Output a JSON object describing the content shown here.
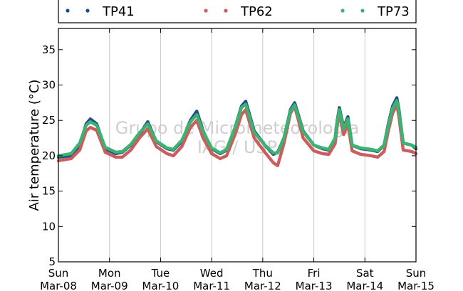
{
  "chart_data": {
    "type": "scatter",
    "ylabel": "Air temperature (°C)",
    "ylim": [
      5,
      38
    ],
    "yticks": [
      5,
      10,
      15,
      20,
      25,
      30,
      35
    ],
    "xlim": [
      "2015-03-08",
      "2015-03-15"
    ],
    "xticks": [
      {
        "day": "Sun",
        "date": "Mar-08"
      },
      {
        "day": "Mon",
        "date": "Mar-09"
      },
      {
        "day": "Tue",
        "date": "Mar-10"
      },
      {
        "day": "Wed",
        "date": "Mar-11"
      },
      {
        "day": "Thu",
        "date": "Mar-12"
      },
      {
        "day": "Fri",
        "date": "Mar-13"
      },
      {
        "day": "Sat",
        "date": "Mar-14"
      },
      {
        "day": "Sun",
        "date": "Mar-15"
      }
    ],
    "grid": "vertical",
    "legend": "top",
    "watermark": [
      "Grupo de Micrometeorologia",
      "IAG / USP"
    ],
    "series": [
      {
        "name": "TP41",
        "color": "#1f4e8c",
        "x": [
          "2015-03-08 00:00",
          "2015-03-08 06:00",
          "2015-03-08 10:00",
          "2015-03-08 13:00",
          "2015-03-08 15:00",
          "2015-03-08 18:00",
          "2015-03-08 22:00",
          "2015-03-09 03:00",
          "2015-03-09 06:00",
          "2015-03-09 10:00",
          "2015-03-09 14:00",
          "2015-03-09 18:00",
          "2015-03-09 22:00",
          "2015-03-10 03:00",
          "2015-03-10 06:00",
          "2015-03-10 10:00",
          "2015-03-10 14:00",
          "2015-03-10 17:00",
          "2015-03-10 20:00",
          "2015-03-11 00:00",
          "2015-03-11 04:00",
          "2015-03-11 07:00",
          "2015-03-11 11:00",
          "2015-03-11 14:00",
          "2015-03-11 16:00",
          "2015-03-11 20:00",
          "2015-03-12 01:00",
          "2015-03-12 05:00",
          "2015-03-12 07:00",
          "2015-03-12 10:00",
          "2015-03-12 13:00",
          "2015-03-12 15:00",
          "2015-03-12 19:00",
          "2015-03-13 00:00",
          "2015-03-13 04:00",
          "2015-03-13 07:00",
          "2015-03-13 10:00",
          "2015-03-13 11:00",
          "2015-03-13 12:00",
          "2015-03-13 14:00",
          "2015-03-13 16:00",
          "2015-03-13 18:00",
          "2015-03-13 22:00",
          "2015-03-14 03:00",
          "2015-03-14 06:00",
          "2015-03-14 09:00",
          "2015-03-14 11:00",
          "2015-03-14 13:00",
          "2015-03-14 15:00",
          "2015-03-14 16:00",
          "2015-03-14 18:00",
          "2015-03-14 22:00",
          "2015-03-15 00:00"
        ],
        "y": [
          19.8,
          20.0,
          21.5,
          24.5,
          25.2,
          24.5,
          21.0,
          20.3,
          20.5,
          21.5,
          23.0,
          24.8,
          22.0,
          21.0,
          20.8,
          22.0,
          25.0,
          26.3,
          23.5,
          21.0,
          20.3,
          20.8,
          24.0,
          27.0,
          27.7,
          23.5,
          21.5,
          20.2,
          20.5,
          22.5,
          26.5,
          27.5,
          23.5,
          21.5,
          21.0,
          20.8,
          22.5,
          25.0,
          26.8,
          24.0,
          25.5,
          21.5,
          21.0,
          20.8,
          20.6,
          21.5,
          24.5,
          27.0,
          28.2,
          26.5,
          21.8,
          21.5,
          21.0
        ]
      },
      {
        "name": "TP62",
        "color": "#cd5c5c",
        "x": [
          "2015-03-08 00:00",
          "2015-03-08 06:00",
          "2015-03-08 10:00",
          "2015-03-08 13:00",
          "2015-03-08 15:00",
          "2015-03-08 18:00",
          "2015-03-08 22:00",
          "2015-03-09 03:00",
          "2015-03-09 06:00",
          "2015-03-09 10:00",
          "2015-03-09 14:00",
          "2015-03-09 18:00",
          "2015-03-09 22:00",
          "2015-03-10 03:00",
          "2015-03-10 06:00",
          "2015-03-10 10:00",
          "2015-03-10 14:00",
          "2015-03-10 17:00",
          "2015-03-10 20:00",
          "2015-03-11 00:00",
          "2015-03-11 04:00",
          "2015-03-11 07:00",
          "2015-03-11 11:00",
          "2015-03-11 14:00",
          "2015-03-11 16:00",
          "2015-03-11 20:00",
          "2015-03-12 01:00",
          "2015-03-12 05:00",
          "2015-03-12 07:00",
          "2015-03-12 10:00",
          "2015-03-12 13:00",
          "2015-03-12 15:00",
          "2015-03-12 19:00",
          "2015-03-13 00:00",
          "2015-03-13 04:00",
          "2015-03-13 07:00",
          "2015-03-13 10:00",
          "2015-03-13 11:00",
          "2015-03-13 12:00",
          "2015-03-13 14:00",
          "2015-03-13 16:00",
          "2015-03-13 18:00",
          "2015-03-13 22:00",
          "2015-03-14 03:00",
          "2015-03-14 06:00",
          "2015-03-14 09:00",
          "2015-03-14 11:00",
          "2015-03-14 13:00",
          "2015-03-14 15:00",
          "2015-03-14 16:00",
          "2015-03-14 18:00",
          "2015-03-14 22:00",
          "2015-03-15 00:00"
        ],
        "y": [
          19.3,
          19.6,
          20.8,
          23.5,
          24.0,
          23.6,
          20.5,
          19.8,
          19.8,
          20.8,
          22.5,
          23.8,
          21.3,
          20.3,
          20.0,
          21.3,
          24.0,
          25.0,
          22.5,
          20.3,
          19.6,
          20.0,
          23.0,
          25.8,
          26.5,
          22.5,
          20.5,
          19.0,
          18.6,
          21.8,
          26.0,
          27.0,
          22.5,
          20.7,
          20.3,
          20.2,
          21.7,
          24.2,
          26.0,
          23.0,
          24.5,
          20.7,
          20.2,
          20.0,
          19.8,
          20.6,
          23.5,
          26.0,
          27.2,
          25.5,
          20.8,
          20.6,
          20.3
        ]
      },
      {
        "name": "TP73",
        "color": "#3cb371",
        "x": [
          "2015-03-08 00:00",
          "2015-03-08 06:00",
          "2015-03-08 10:00",
          "2015-03-08 13:00",
          "2015-03-08 15:00",
          "2015-03-08 18:00",
          "2015-03-08 22:00",
          "2015-03-09 03:00",
          "2015-03-09 06:00",
          "2015-03-09 10:00",
          "2015-03-09 14:00",
          "2015-03-09 18:00",
          "2015-03-09 22:00",
          "2015-03-10 03:00",
          "2015-03-10 06:00",
          "2015-03-10 10:00",
          "2015-03-10 14:00",
          "2015-03-10 17:00",
          "2015-03-10 20:00",
          "2015-03-11 00:00",
          "2015-03-11 04:00",
          "2015-03-11 07:00",
          "2015-03-11 11:00",
          "2015-03-11 14:00",
          "2015-03-11 16:00",
          "2015-03-11 20:00",
          "2015-03-12 01:00",
          "2015-03-12 05:00",
          "2015-03-12 07:00",
          "2015-03-12 10:00",
          "2015-03-12 13:00",
          "2015-03-12 15:00",
          "2015-03-12 19:00",
          "2015-03-13 00:00",
          "2015-03-13 04:00",
          "2015-03-13 07:00",
          "2015-03-13 10:00",
          "2015-03-13 11:00",
          "2015-03-13 12:00",
          "2015-03-13 14:00",
          "2015-03-13 16:00",
          "2015-03-13 18:00",
          "2015-03-13 22:00",
          "2015-03-14 03:00",
          "2015-03-14 06:00",
          "2015-03-14 09:00",
          "2015-03-14 11:00",
          "2015-03-14 13:00",
          "2015-03-14 15:00",
          "2015-03-14 16:00",
          "2015-03-14 18:00",
          "2015-03-14 22:00",
          "2015-03-15 00:00"
        ],
        "y": [
          20.0,
          20.3,
          21.8,
          24.3,
          24.8,
          24.3,
          21.2,
          20.5,
          20.6,
          21.6,
          23.2,
          24.5,
          22.1,
          21.1,
          20.9,
          22.2,
          24.8,
          25.8,
          23.4,
          21.1,
          20.4,
          20.9,
          24.0,
          26.8,
          27.3,
          23.3,
          21.5,
          20.4,
          20.4,
          22.6,
          26.3,
          27.2,
          23.4,
          21.5,
          21.1,
          20.9,
          22.5,
          24.8,
          26.5,
          23.8,
          25.2,
          21.5,
          21.1,
          20.9,
          20.7,
          21.5,
          24.3,
          26.7,
          27.8,
          26.2,
          21.8,
          21.5,
          21.2
        ]
      }
    ]
  }
}
